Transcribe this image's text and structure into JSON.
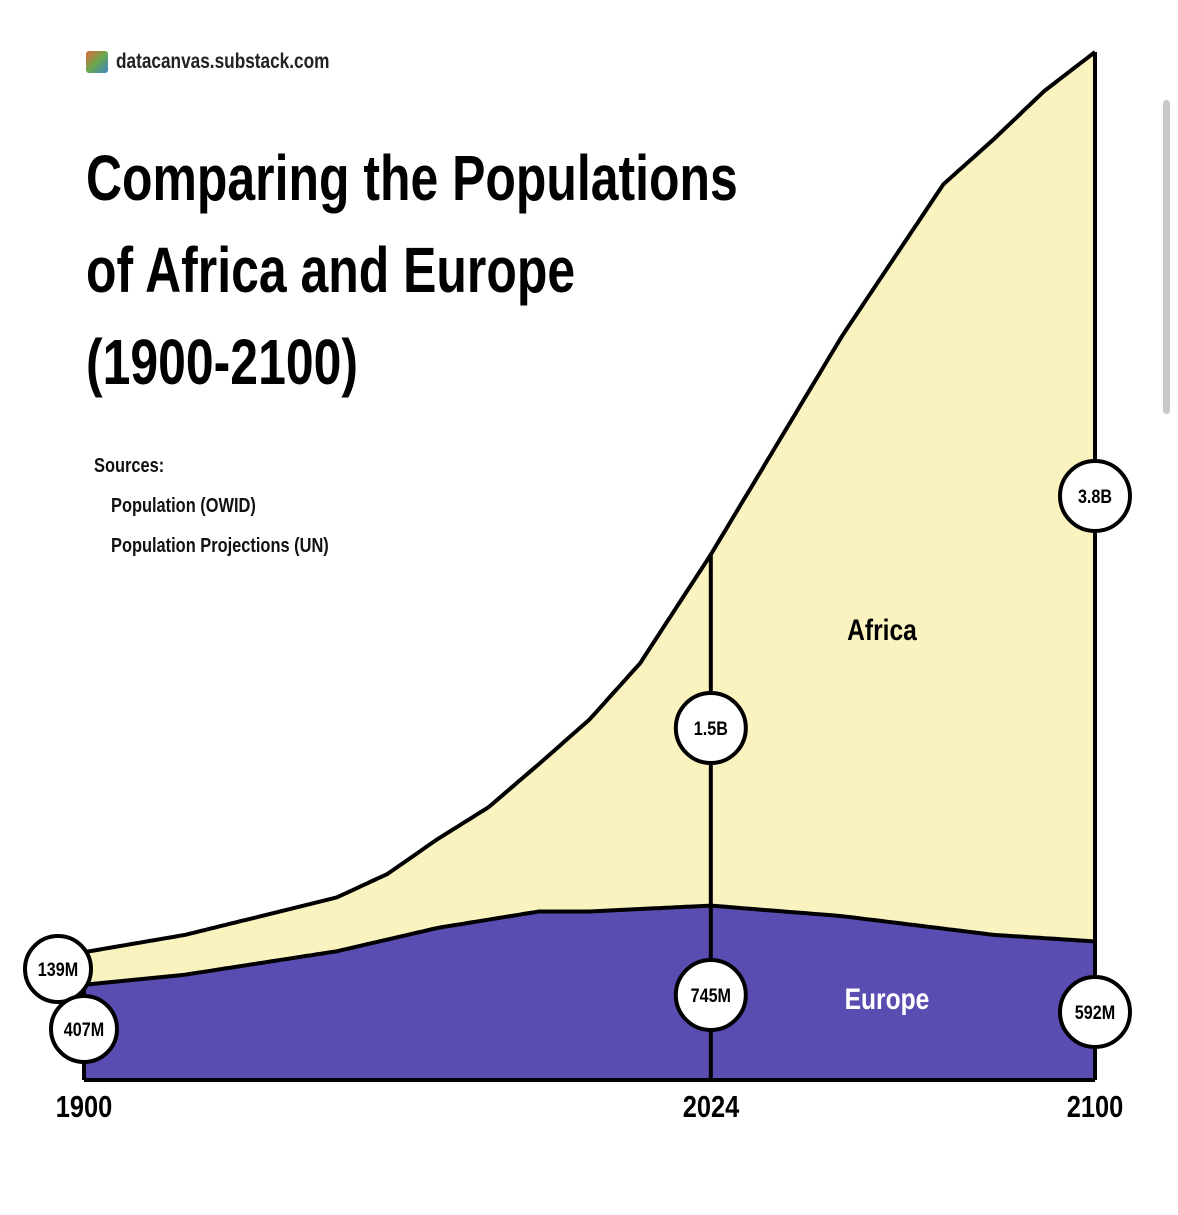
{
  "brand": {
    "text": "datacanvas.substack.com",
    "logo_icon": "substack-logo-icon"
  },
  "title": "Comparing the Populations\nof Africa and Europe\n(1900-2100)",
  "sources": {
    "heading": "Sources:",
    "items": [
      "Population (OWID)",
      "Population Projections (UN)"
    ]
  },
  "colors": {
    "africa": "#faf3bf",
    "europe": "#5a4db2",
    "outline": "#000000",
    "europe_label": "#ffffff"
  },
  "chart_data": {
    "type": "area",
    "stacked": true,
    "x_ticks": [
      "1900",
      "2024",
      "2100"
    ],
    "xlim": [
      1900,
      2100
    ],
    "ylim": [
      0,
      4.4
    ],
    "units": "billions",
    "grid": false,
    "series": [
      {
        "name": "Europe",
        "x": [
          1900,
          1920,
          1950,
          1970,
          1990,
          2000,
          2024,
          2050,
          2080,
          2100
        ],
        "values": [
          0.407,
          0.45,
          0.55,
          0.65,
          0.72,
          0.72,
          0.745,
          0.7,
          0.62,
          0.592
        ]
      },
      {
        "name": "Africa",
        "x": [
          1900,
          1920,
          1950,
          1960,
          1980,
          1990,
          2000,
          2010,
          2024,
          2050,
          2070,
          2090,
          2100
        ],
        "values": [
          0.139,
          0.17,
          0.23,
          0.28,
          0.48,
          0.63,
          0.82,
          1.05,
          1.5,
          2.48,
          3.18,
          3.62,
          3.8
        ]
      }
    ],
    "markers": [
      {
        "x": 1900,
        "label": "139M"
      },
      {
        "x": 1900,
        "label": "407M"
      },
      {
        "x": 2024,
        "label": "1.5B"
      },
      {
        "x": 2024,
        "label": "745M"
      },
      {
        "x": 2100,
        "label": "3.8B"
      },
      {
        "x": 2100,
        "label": "592M"
      }
    ],
    "area_labels": {
      "africa": "Africa",
      "europe": "Europe"
    }
  }
}
